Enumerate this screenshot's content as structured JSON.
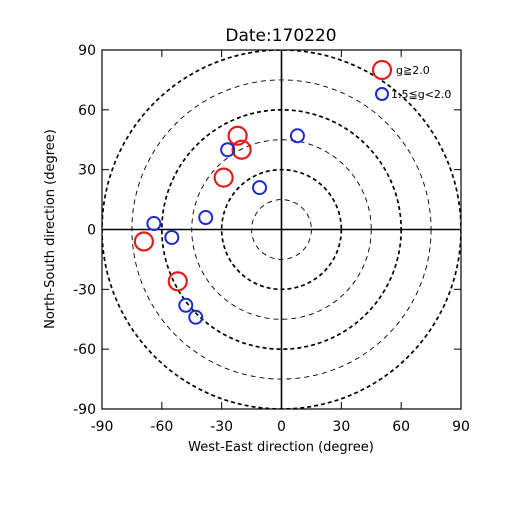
{
  "chart_data": {
    "type": "scatter",
    "title": "Date:170220",
    "xlabel": "West-East direction (degree)",
    "ylabel": "North-South direction (degree)",
    "xlim": [
      -90,
      90
    ],
    "ylim": [
      -90,
      90
    ],
    "xticks": [
      "-90",
      "-60",
      "-30",
      "0",
      "30",
      "60",
      "90"
    ],
    "yticks": [
      "90",
      "60",
      "30",
      "0",
      "-30",
      "-60",
      "-90"
    ],
    "tick_values": [
      -90,
      -60,
      -30,
      0,
      30,
      60,
      90
    ],
    "rings": [
      {
        "radius": 15,
        "style": "thin-dashed"
      },
      {
        "radius": 30,
        "style": "thick-dashed"
      },
      {
        "radius": 45,
        "style": "thin-dashed"
      },
      {
        "radius": 60,
        "style": "thick-dashed"
      },
      {
        "radius": 75,
        "style": "thin-dashed"
      },
      {
        "radius": 90,
        "style": "thick-dashed"
      }
    ],
    "grid": false,
    "legend_position": "top-right",
    "series": [
      {
        "name": "g≧2.0",
        "color": "#e0201c",
        "marker": "large-open-circle",
        "points": [
          {
            "x": -22,
            "y": 47
          },
          {
            "x": -20,
            "y": 40
          },
          {
            "x": -29,
            "y": 26
          },
          {
            "x": -69,
            "y": -6
          },
          {
            "x": -52,
            "y": -26
          }
        ]
      },
      {
        "name": "1.5≦g<2.0",
        "color": "#1c2ad0",
        "marker": "small-open-circle",
        "points": [
          {
            "x": 8,
            "y": 47
          },
          {
            "x": -27,
            "y": 40
          },
          {
            "x": -11,
            "y": 21
          },
          {
            "x": -38,
            "y": 6
          },
          {
            "x": -64,
            "y": 3
          },
          {
            "x": -55,
            "y": -4
          },
          {
            "x": -48,
            "y": -38
          },
          {
            "x": -43,
            "y": -44
          }
        ]
      }
    ]
  }
}
